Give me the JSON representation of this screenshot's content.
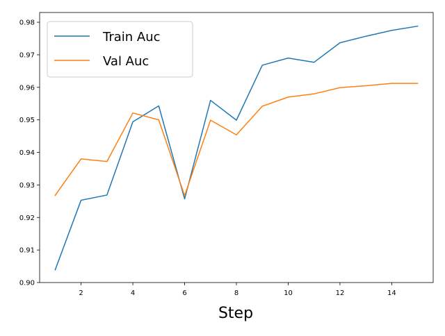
{
  "chart_data": {
    "type": "line",
    "title": "",
    "xlabel": "Step",
    "ylabel": "",
    "x": [
      1,
      2,
      3,
      4,
      5,
      6,
      7,
      8,
      9,
      10,
      11,
      12,
      13,
      14,
      15
    ],
    "xlim": [
      0.4,
      15.6
    ],
    "ylim": [
      0.9,
      0.983
    ],
    "xticks": [
      2,
      4,
      6,
      8,
      10,
      12,
      14
    ],
    "yticks": [
      0.9,
      0.91,
      0.92,
      0.93,
      0.94,
      0.95,
      0.96,
      0.97,
      0.98
    ],
    "grid": false,
    "legend_position": "top-left",
    "series": [
      {
        "name": "Train Auc",
        "color": "#1f77b4",
        "values": [
          0.9039,
          0.9253,
          0.9269,
          0.9494,
          0.9543,
          0.9257,
          0.956,
          0.9499,
          0.9668,
          0.969,
          0.9677,
          0.9737,
          0.9757,
          0.9775,
          0.9788
        ]
      },
      {
        "name": "Val Auc",
        "color": "#ff7f0e",
        "values": [
          0.9268,
          0.938,
          0.9372,
          0.9521,
          0.95,
          0.9267,
          0.9499,
          0.9454,
          0.9542,
          0.957,
          0.958,
          0.9599,
          0.9605,
          0.9612,
          0.9612
        ]
      }
    ]
  }
}
